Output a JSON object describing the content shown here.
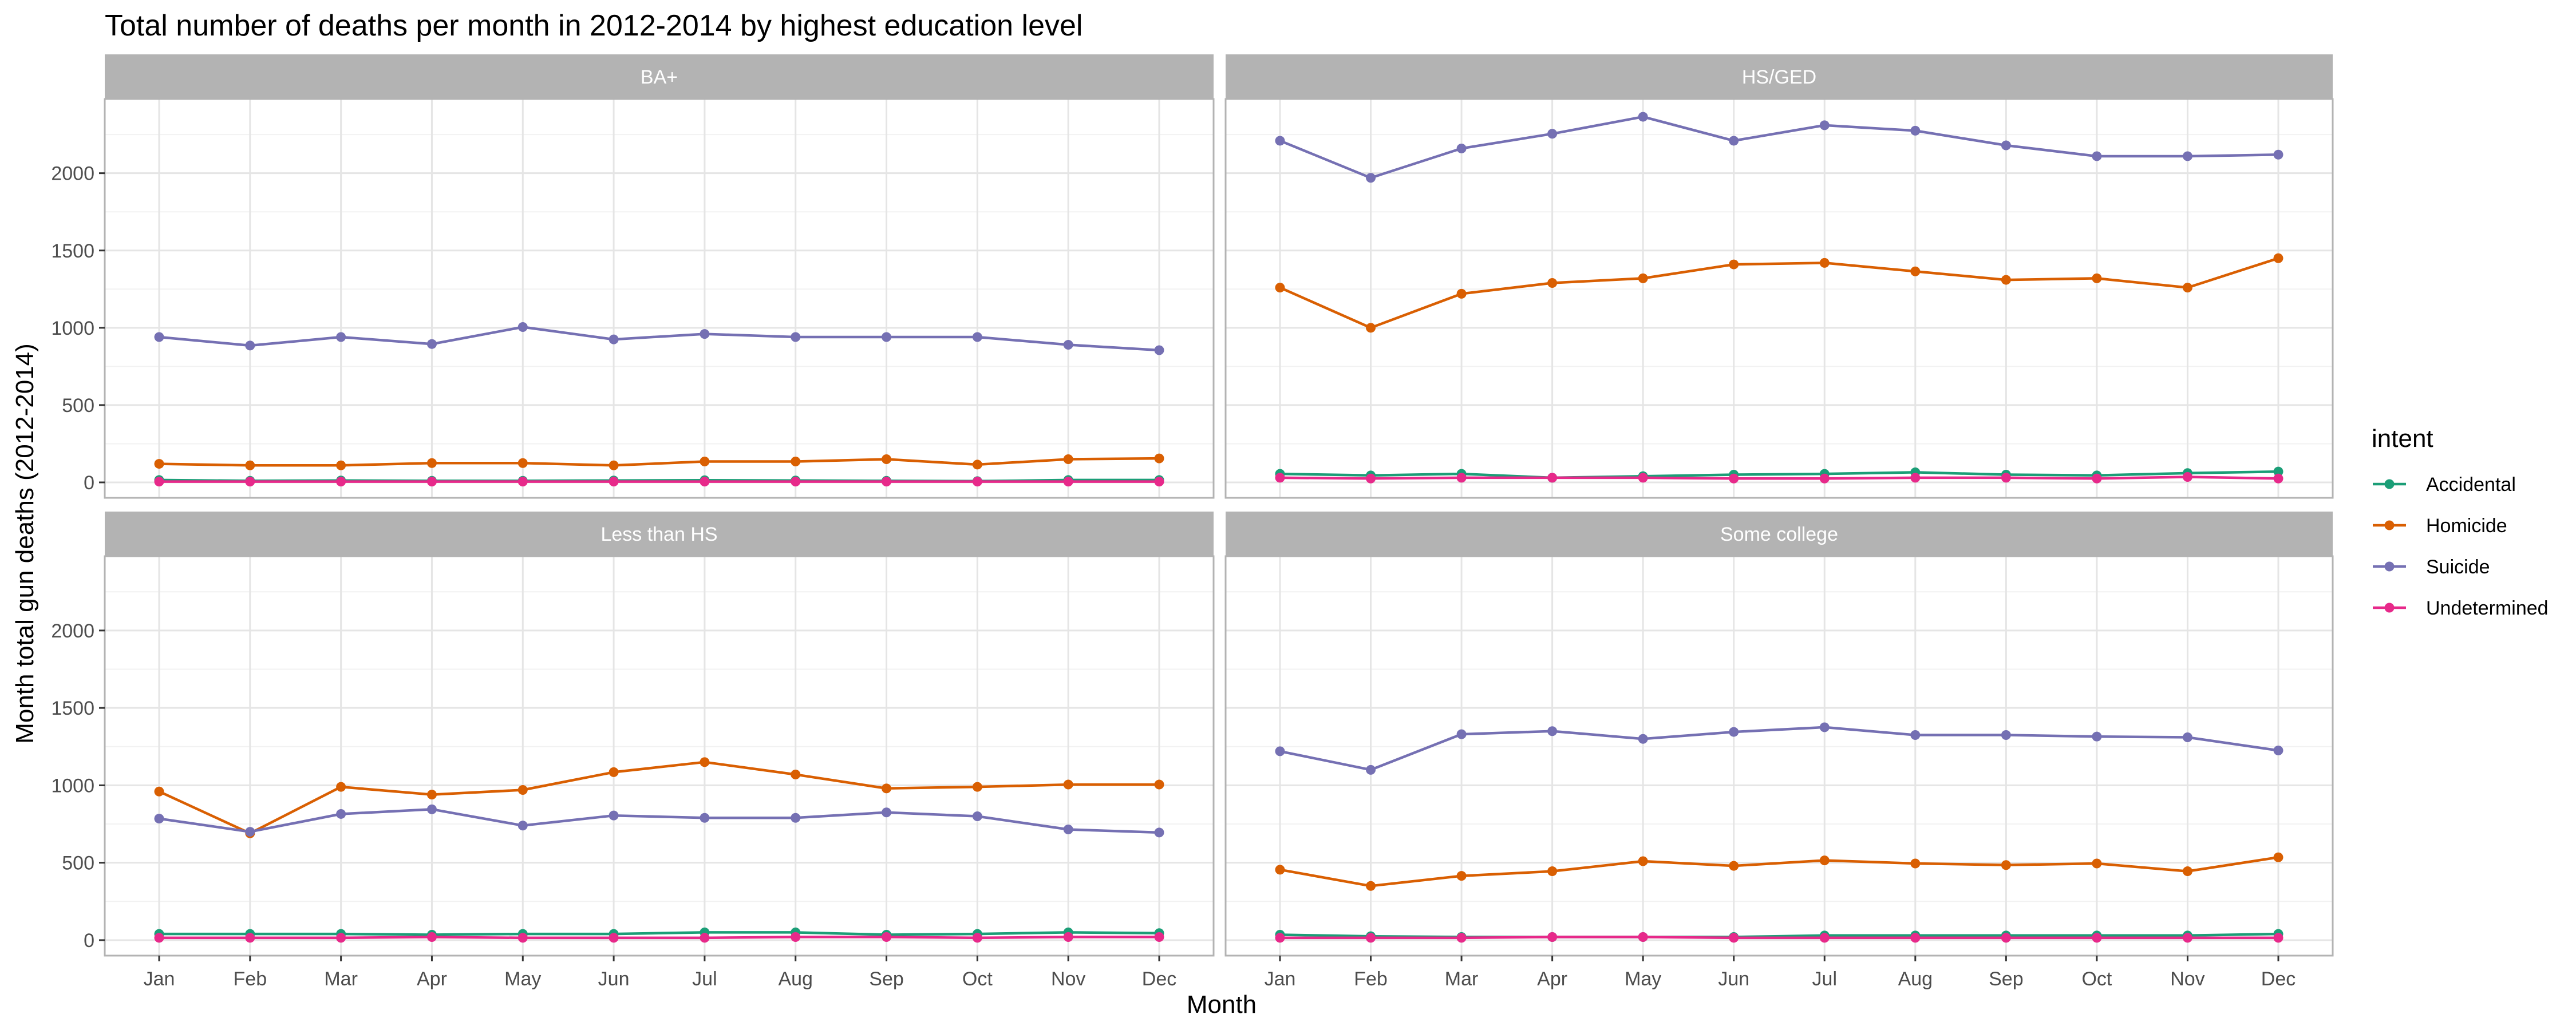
{
  "chart_data": {
    "type": "line",
    "title": "Total number of deaths per month in 2012-2014 by highest education level",
    "xlabel": "Month",
    "ylabel": "Month total gun deaths (2012-2014)",
    "categories": [
      "Jan",
      "Feb",
      "Mar",
      "Apr",
      "May",
      "Jun",
      "Jul",
      "Aug",
      "Sep",
      "Oct",
      "Nov",
      "Dec"
    ],
    "yticks": [
      0,
      500,
      1000,
      1500,
      2000
    ],
    "ylim": [
      -100,
      2480
    ],
    "grid": true,
    "legend": {
      "title": "intent",
      "position": "right"
    },
    "series_colors": {
      "Accidental": "#1b9e77",
      "Homicide": "#d95f02",
      "Suicide": "#7570b3",
      "Undetermined": "#e7298a"
    },
    "panels": [
      {
        "label": "BA+",
        "series": [
          {
            "name": "Accidental",
            "values": [
              15,
              10,
              12,
              10,
              10,
              12,
              14,
              12,
              10,
              8,
              15,
              15
            ]
          },
          {
            "name": "Homicide",
            "values": [
              120,
              110,
              110,
              125,
              125,
              110,
              135,
              135,
              150,
              115,
              150,
              155
            ]
          },
          {
            "name": "Suicide",
            "values": [
              940,
              885,
              940,
              895,
              1005,
              925,
              960,
              940,
              940,
              940,
              890,
              855
            ]
          },
          {
            "name": "Undetermined",
            "values": [
              5,
              5,
              5,
              5,
              5,
              5,
              5,
              5,
              5,
              5,
              5,
              5
            ]
          }
        ]
      },
      {
        "label": "HS/GED",
        "series": [
          {
            "name": "Accidental",
            "values": [
              55,
              45,
              55,
              30,
              40,
              50,
              55,
              65,
              50,
              45,
              60,
              70
            ]
          },
          {
            "name": "Homicide",
            "values": [
              1260,
              1000,
              1220,
              1290,
              1320,
              1410,
              1420,
              1365,
              1310,
              1320,
              1260,
              1450
            ]
          },
          {
            "name": "Suicide",
            "values": [
              2210,
              1970,
              2160,
              2255,
              2365,
              2210,
              2310,
              2275,
              2180,
              2110,
              2110,
              2120
            ]
          },
          {
            "name": "Undetermined",
            "values": [
              30,
              25,
              30,
              30,
              30,
              25,
              25,
              30,
              30,
              25,
              35,
              25
            ]
          }
        ]
      },
      {
        "label": "Less than HS",
        "series": [
          {
            "name": "Accidental",
            "values": [
              40,
              40,
              40,
              35,
              40,
              40,
              50,
              50,
              35,
              40,
              50,
              45
            ]
          },
          {
            "name": "Homicide",
            "values": [
              960,
              690,
              990,
              940,
              970,
              1085,
              1150,
              1070,
              980,
              990,
              1005,
              1005
            ]
          },
          {
            "name": "Suicide",
            "values": [
              785,
              700,
              815,
              845,
              740,
              805,
              790,
              790,
              825,
              800,
              715,
              695
            ]
          },
          {
            "name": "Undetermined",
            "values": [
              15,
              15,
              15,
              20,
              15,
              15,
              15,
              20,
              20,
              15,
              20,
              20
            ]
          }
        ]
      },
      {
        "label": "Some college",
        "series": [
          {
            "name": "Accidental",
            "values": [
              35,
              25,
              20,
              20,
              20,
              20,
              30,
              30,
              30,
              30,
              30,
              40
            ]
          },
          {
            "name": "Homicide",
            "values": [
              455,
              350,
              415,
              445,
              510,
              480,
              515,
              495,
              485,
              495,
              445,
              535
            ]
          },
          {
            "name": "Suicide",
            "values": [
              1220,
              1100,
              1330,
              1350,
              1300,
              1345,
              1375,
              1325,
              1325,
              1315,
              1310,
              1225
            ]
          },
          {
            "name": "Undetermined",
            "values": [
              15,
              15,
              15,
              20,
              20,
              15,
              15,
              15,
              15,
              15,
              15,
              15
            ]
          }
        ]
      }
    ]
  }
}
